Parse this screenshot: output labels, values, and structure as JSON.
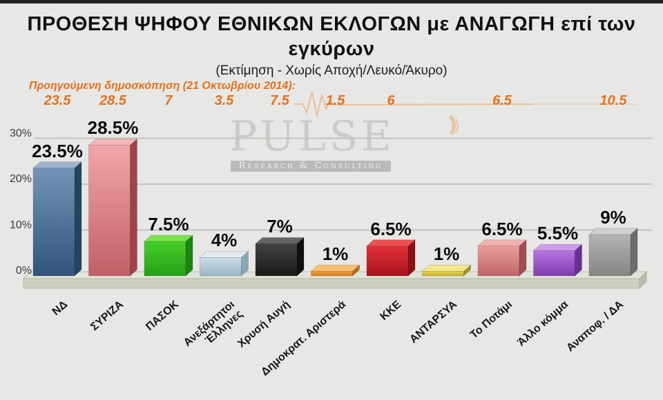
{
  "slide": {
    "title_line1": "ΠΡΟΘΕΣΗ ΨΗΦΟΥ ΕΘΝΙΚΩΝ ΕΚΛΟΓΩΝ με ΑΝΑΓΩΓΗ επί των",
    "title_line2": "εγκύρων",
    "subtitle": "(Εκτίμηση - Χωρίς Αποχή/Λευκό/Άκυρο)",
    "previous_poll_label": "Προηγούμενη δημοσκόπηση (21 Οκτωβρίου 2014):",
    "watermark": {
      "name": "PULSE",
      "tagline": "Research & Consulting",
      "accent_color": "#e8913f"
    }
  },
  "colors": {
    "background": "#e7e7e5",
    "orange_text": "#e2711d",
    "gridline": "#c2c2be",
    "floor_top": "#e1e4d8",
    "floor_front": "#ccd1bf",
    "floor_side": "#b9bfa9",
    "floor_edge": "#a7ad95"
  },
  "chart_data": {
    "type": "bar",
    "title": "ΠΡΟΘΕΣΗ ΨΗΦΟΥ ΕΘΝΙΚΩΝ ΕΚΛΟΓΩΝ με ΑΝΑΓΩΓΗ επί των εγκύρων",
    "subtitle": "(Εκτίμηση - Χωρίς Αποχή/Λευκό/Άκυρο)",
    "categories": [
      "ΝΔ",
      "ΣΥΡΙΖΑ",
      "ΠΑΣΟΚ",
      "Ανεξάρτητοι\nΈλληνες",
      "Χρυσή Αυγή",
      "Δημοκρατ. Αριστερά",
      "ΚΚΕ",
      "ΑΝΤΑΡΣΥΑ",
      "Το Ποτάμι",
      "Άλλο κόμμα",
      "Αναποφ. / ΔΑ"
    ],
    "values": [
      23.5,
      28.5,
      7.5,
      4,
      7,
      1,
      6.5,
      1,
      6.5,
      5.5,
      9
    ],
    "value_labels": [
      "23.5%",
      "28.5%",
      "7.5%",
      "4%",
      "7%",
      "1%",
      "6.5%",
      "1%",
      "6.5%",
      "5.5%",
      "9%"
    ],
    "previous_values": [
      23.5,
      28.5,
      7,
      3.5,
      7.5,
      1.5,
      6,
      null,
      6.5,
      null,
      10.5
    ],
    "previous_value_labels": [
      "23.5",
      "28.5",
      "7",
      "3.5",
      "7.5",
      "1.5",
      "6",
      "",
      "6.5",
      "",
      "10.5"
    ],
    "yticks": [
      {
        "label": "0%",
        "value": 0
      },
      {
        "label": "10%",
        "value": 10
      },
      {
        "label": "20%",
        "value": 20
      },
      {
        "label": "30%",
        "value": 30
      }
    ],
    "ylim": [
      0,
      30
    ],
    "grid": true,
    "legend_position": "none",
    "bar_colors": [
      {
        "top": "#9db4cc",
        "light": "#7494b8",
        "dark": "#32547b",
        "side": "#254462"
      },
      {
        "top": "#f5b6ba",
        "light": "#f2a6aa",
        "dark": "#c06066",
        "side": "#9e434c"
      },
      {
        "top": "#7ce24c",
        "light": "#46cd2a",
        "dark": "#27a017",
        "side": "#1d8412"
      },
      {
        "top": "#e2ecf1",
        "light": "#cddde6",
        "dark": "#99b6c6",
        "side": "#87a6b8"
      },
      {
        "top": "#646464",
        "light": "#424242",
        "dark": "#1a1a1a",
        "side": "#101010"
      },
      {
        "top": "#f8c070",
        "light": "#f49c42",
        "dark": "#d87c22",
        "side": "#bd681a"
      },
      {
        "top": "#ee5152",
        "light": "#e1323a",
        "dark": "#a8121c",
        "side": "#8d0f16"
      },
      {
        "top": "#f3e88c",
        "light": "#e7d64c",
        "dark": "#c7ac2e",
        "side": "#ab9224"
      },
      {
        "top": "#f0b2b0",
        "light": "#e99d9b",
        "dark": "#bf6668",
        "side": "#a04f54"
      },
      {
        "top": "#cf9cec",
        "light": "#b675e1",
        "dark": "#7f3cae",
        "side": "#692f93"
      },
      {
        "top": "#d0d0d0",
        "light": "#b4b4b4",
        "dark": "#858585",
        "side": "#6d6d6d"
      }
    ]
  }
}
